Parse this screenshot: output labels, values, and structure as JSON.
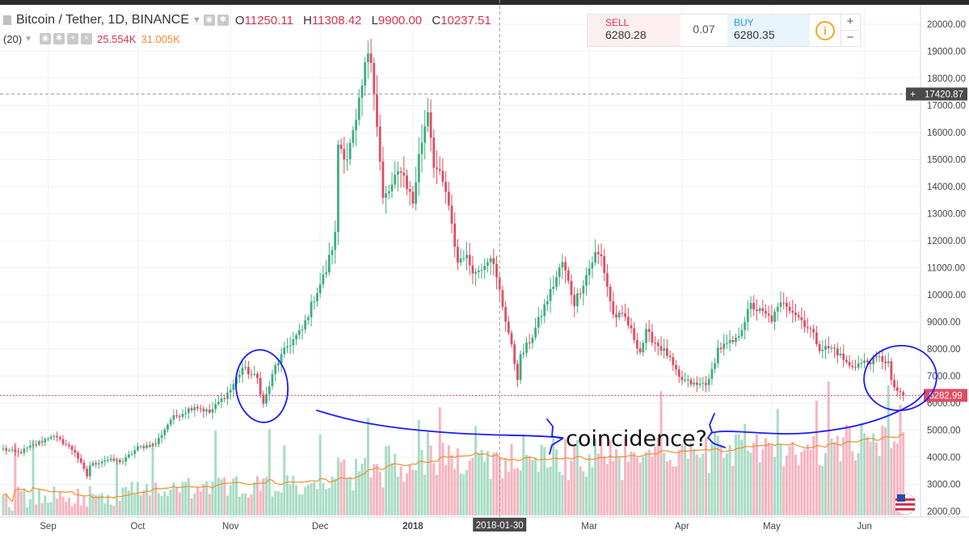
{
  "header": {
    "symbol": "Bitcoin / Tether, 1D, BINANCE",
    "o_label": "O",
    "o": "11250.11",
    "h_label": "H",
    "h": "11308.42",
    "l_label": "L",
    "l": "9900.00",
    "c_label": "C",
    "c": "10237.51"
  },
  "volume_legend": {
    "period": "(20)",
    "volume": "25.554K",
    "ma": "31.005K"
  },
  "trade_widget": {
    "sell_label": "SELL",
    "sell_price": "6280.28",
    "spread": "0.07",
    "buy_label": "BUY",
    "buy_price": "6280.35",
    "info_icon": "info-icon",
    "plus": "+",
    "minus": "−"
  },
  "annotation": {
    "text": "coincidence?",
    "color": "#1a1aff"
  },
  "colors": {
    "up": "#3fae7e",
    "down": "#e04d62",
    "vol_up": "#a9dcc5",
    "vol_down": "#f5b5c0",
    "ma": "#f08c2e",
    "price_line": "#e04d62",
    "crosshair": "#9a9a9a",
    "grid": "#eef0f3",
    "axis_badge": "#4a4a4a"
  },
  "chart_data": {
    "type": "candlestick",
    "title": "Bitcoin / Tether, 1D, BINANCE",
    "ylim": [
      1850,
      20600
    ],
    "y_ticks": [
      "20000.00",
      "19000.00",
      "18000.00",
      "17000.00",
      "16000.00",
      "15000.00",
      "14000.00",
      "13000.00",
      "12000.00",
      "11000.00",
      "10000.00",
      "9000.00",
      "8000.00",
      "7000.00",
      "6000.00",
      "5000.00",
      "4000.00",
      "3000.00",
      "2000.00"
    ],
    "y_tick_values": [
      20000,
      19000,
      18000,
      17000,
      16000,
      15000,
      14000,
      13000,
      12000,
      11000,
      10000,
      9000,
      8000,
      7000,
      6000,
      5000,
      4000,
      3000,
      2000
    ],
    "x_ticks": [
      "Sep",
      "Oct",
      "Nov",
      "Dec",
      "2018",
      "Mar",
      "Apr",
      "May",
      "Jun"
    ],
    "x_tick_dates": [
      "2017-09-01",
      "2017-10-01",
      "2017-11-01",
      "2017-12-01",
      "2018-01-01",
      "2018-03-01",
      "2018-04-01",
      "2018-05-01",
      "2018-06-01"
    ],
    "start_date": "2017-08-17",
    "crosshair_date_label": "2018-01-30",
    "crosshair_price_label": "17420.87",
    "crosshair_price": 17420.87,
    "last_price_label": "6282.99",
    "last_price": 6282.99,
    "close_anchors": [
      [
        "2017-08-17",
        4300
      ],
      [
        "2017-08-22",
        4150
      ],
      [
        "2017-08-30",
        4600
      ],
      [
        "2017-09-02",
        4800
      ],
      [
        "2017-09-06",
        4550
      ],
      [
        "2017-09-10",
        4200
      ],
      [
        "2017-09-14",
        3300
      ],
      [
        "2017-09-15",
        3700
      ],
      [
        "2017-09-20",
        3900
      ],
      [
        "2017-09-26",
        3850
      ],
      [
        "2017-10-01",
        4350
      ],
      [
        "2017-10-07",
        4500
      ],
      [
        "2017-10-12",
        5400
      ],
      [
        "2017-10-20",
        5900
      ],
      [
        "2017-10-25",
        5650
      ],
      [
        "2017-11-01",
        6500
      ],
      [
        "2017-11-05",
        7300
      ],
      [
        "2017-11-10",
        6900
      ],
      [
        "2017-11-12",
        5950
      ],
      [
        "2017-11-16",
        7350
      ],
      [
        "2017-11-20",
        8100
      ],
      [
        "2017-11-25",
        8700
      ],
      [
        "2017-11-29",
        9900
      ],
      [
        "2017-12-03",
        10900
      ],
      [
        "2017-12-06",
        12200
      ],
      [
        "2017-12-07",
        15600
      ],
      [
        "2017-12-10",
        15100
      ],
      [
        "2017-12-13",
        16300
      ],
      [
        "2017-12-17",
        19050
      ],
      [
        "2017-12-18",
        18900
      ],
      [
        "2017-12-22",
        13500
      ],
      [
        "2017-12-25",
        14000
      ],
      [
        "2017-12-28",
        14700
      ],
      [
        "2018-01-01",
        13400
      ],
      [
        "2018-01-03",
        15100
      ],
      [
        "2018-01-06",
        16900
      ],
      [
        "2018-01-08",
        14900
      ],
      [
        "2018-01-12",
        13800
      ],
      [
        "2018-01-16",
        11200
      ],
      [
        "2018-01-18",
        11500
      ],
      [
        "2018-01-22",
        10800
      ],
      [
        "2018-01-27",
        11500
      ],
      [
        "2018-01-30",
        10100
      ],
      [
        "2018-02-02",
        8600
      ],
      [
        "2018-02-05",
        6950
      ],
      [
        "2018-02-06",
        7700
      ],
      [
        "2018-02-10",
        8500
      ],
      [
        "2018-02-16",
        10100
      ],
      [
        "2018-02-20",
        11200
      ],
      [
        "2018-02-24",
        9700
      ],
      [
        "2018-03-03",
        11500
      ],
      [
        "2018-03-05",
        11400
      ],
      [
        "2018-03-09",
        9250
      ],
      [
        "2018-03-13",
        9150
      ],
      [
        "2018-03-18",
        7900
      ],
      [
        "2018-03-20",
        8600
      ],
      [
        "2018-03-27",
        7800
      ],
      [
        "2018-03-31",
        6900
      ],
      [
        "2018-04-06",
        6650
      ],
      [
        "2018-04-10",
        6800
      ],
      [
        "2018-04-13",
        8000
      ],
      [
        "2018-04-19",
        8300
      ],
      [
        "2018-04-24",
        9600
      ],
      [
        "2018-05-01",
        9100
      ],
      [
        "2018-05-05",
        9800
      ],
      [
        "2018-05-09",
        9300
      ],
      [
        "2018-05-14",
        8700
      ],
      [
        "2018-05-17",
        8050
      ],
      [
        "2018-05-22",
        8000
      ],
      [
        "2018-05-27",
        7350
      ],
      [
        "2018-06-01",
        7500
      ],
      [
        "2018-06-06",
        7650
      ],
      [
        "2018-06-09",
        7500
      ],
      [
        "2018-06-10",
        6750
      ],
      [
        "2018-06-13",
        6300
      ],
      [
        "2018-06-14",
        6283
      ]
    ],
    "volume_scale": "same price axis (volume pane overlay)"
  }
}
